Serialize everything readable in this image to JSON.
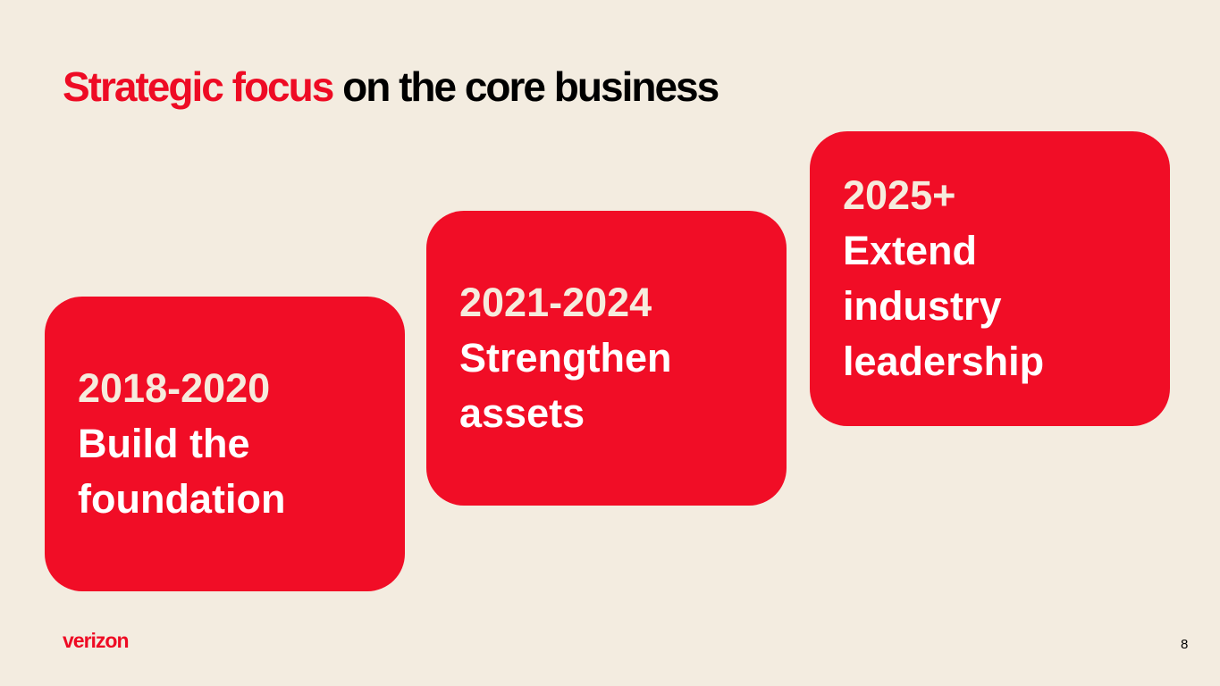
{
  "header": {
    "title_highlight": "Strategic focus",
    "title_rest": "on the core business"
  },
  "cards": [
    {
      "period": "2018-2020",
      "lines": [
        "Build the",
        "foundation"
      ]
    },
    {
      "period": "2021-2024",
      "lines": [
        "Strengthen",
        "assets"
      ]
    },
    {
      "period": "2025+",
      "lines": [
        "Extend",
        "industry",
        "leadership"
      ]
    }
  ],
  "footer": {
    "logo": "verizon",
    "page_number": "8"
  }
}
